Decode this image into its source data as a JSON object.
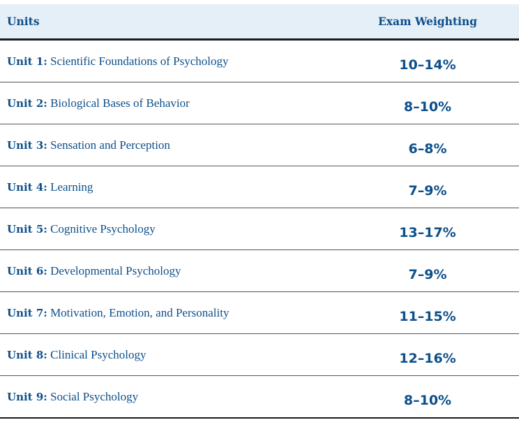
{
  "header": {
    "units_label": "Units",
    "weighting_label": "Exam Weighting"
  },
  "rows": [
    {
      "unit": "Unit 1:",
      "title": "Scientific Foundations of Psychology",
      "weighting": "10–14%"
    },
    {
      "unit": "Unit 2:",
      "title": "Biological Bases of Behavior",
      "weighting": "8–10%"
    },
    {
      "unit": "Unit 3:",
      "title": "Sensation and Perception",
      "weighting": "6–8%"
    },
    {
      "unit": "Unit 4:",
      "title": "Learning",
      "weighting": "7–9%"
    },
    {
      "unit": "Unit 5:",
      "title": "Cognitive Psychology",
      "weighting": "13–17%"
    },
    {
      "unit": "Unit 6:",
      "title": "Developmental Psychology",
      "weighting": "7–9%"
    },
    {
      "unit": "Unit 7:",
      "title": "Motivation, Emotion, and Personality",
      "weighting": "11–15%"
    },
    {
      "unit": "Unit 8:",
      "title": "Clinical Psychology",
      "weighting": "12–16%"
    },
    {
      "unit": "Unit 9:",
      "title": "Social Psychology",
      "weighting": "8–10%"
    }
  ],
  "colors": {
    "text": "#0d4f8a",
    "header_bg": "#e5eff8"
  }
}
